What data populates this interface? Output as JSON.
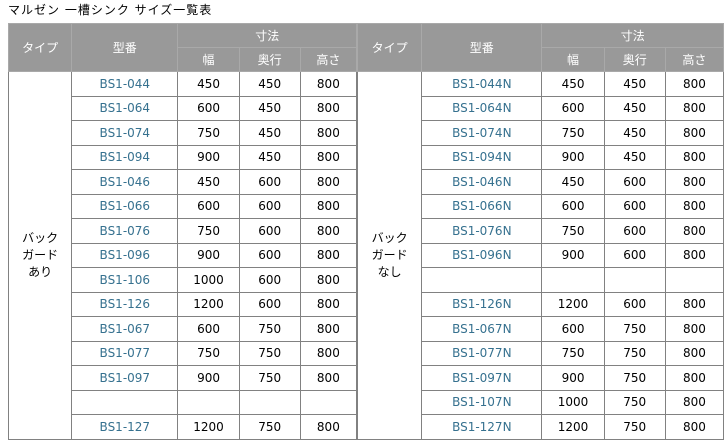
{
  "title": "マルゼン 一槽シンク サイズ一覧表",
  "colors": {
    "header_bg": "#999999",
    "header_text": "#ffffff",
    "model_link_text": "#36718f",
    "grid_border": "#818181"
  },
  "header": {
    "type": "タイプ",
    "model": "型番",
    "dimensions": "寸法",
    "width": "幅",
    "depth": "奥行",
    "height": "高さ"
  },
  "tables": [
    {
      "id": "backguard-ari",
      "type_label": [
        "バック",
        "ガード",
        "あり"
      ],
      "rows": [
        {
          "model": "BS1-044",
          "width": "450",
          "depth": "450",
          "height": "800"
        },
        {
          "model": "BS1-064",
          "width": "600",
          "depth": "450",
          "height": "800"
        },
        {
          "model": "BS1-074",
          "width": "750",
          "depth": "450",
          "height": "800"
        },
        {
          "model": "BS1-094",
          "width": "900",
          "depth": "450",
          "height": "800"
        },
        {
          "model": "BS1-046",
          "width": "450",
          "depth": "600",
          "height": "800"
        },
        {
          "model": "BS1-066",
          "width": "600",
          "depth": "600",
          "height": "800"
        },
        {
          "model": "BS1-076",
          "width": "750",
          "depth": "600",
          "height": "800"
        },
        {
          "model": "BS1-096",
          "width": "900",
          "depth": "600",
          "height": "800"
        },
        {
          "model": "BS1-106",
          "width": "1000",
          "depth": "600",
          "height": "800"
        },
        {
          "model": "BS1-126",
          "width": "1200",
          "depth": "600",
          "height": "800"
        },
        {
          "model": "BS1-067",
          "width": "600",
          "depth": "750",
          "height": "800"
        },
        {
          "model": "BS1-077",
          "width": "750",
          "depth": "750",
          "height": "800"
        },
        {
          "model": "BS1-097",
          "width": "900",
          "depth": "750",
          "height": "800"
        },
        {
          "model": "",
          "width": "",
          "depth": "",
          "height": ""
        },
        {
          "model": "BS1-127",
          "width": "1200",
          "depth": "750",
          "height": "800"
        }
      ]
    },
    {
      "id": "backguard-nashi",
      "type_label": [
        "バック",
        "ガード",
        "なし"
      ],
      "rows": [
        {
          "model": "BS1-044N",
          "width": "450",
          "depth": "450",
          "height": "800"
        },
        {
          "model": "BS1-064N",
          "width": "600",
          "depth": "450",
          "height": "800"
        },
        {
          "model": "BS1-074N",
          "width": "750",
          "depth": "450",
          "height": "800"
        },
        {
          "model": "BS1-094N",
          "width": "900",
          "depth": "450",
          "height": "800"
        },
        {
          "model": "BS1-046N",
          "width": "450",
          "depth": "600",
          "height": "800"
        },
        {
          "model": "BS1-066N",
          "width": "600",
          "depth": "600",
          "height": "800"
        },
        {
          "model": "BS1-076N",
          "width": "750",
          "depth": "600",
          "height": "800"
        },
        {
          "model": "BS1-096N",
          "width": "900",
          "depth": "600",
          "height": "800"
        },
        {
          "model": "",
          "width": "",
          "depth": "",
          "height": ""
        },
        {
          "model": "BS1-126N",
          "width": "1200",
          "depth": "600",
          "height": "800"
        },
        {
          "model": "BS1-067N",
          "width": "600",
          "depth": "750",
          "height": "800"
        },
        {
          "model": "BS1-077N",
          "width": "750",
          "depth": "750",
          "height": "800"
        },
        {
          "model": "BS1-097N",
          "width": "900",
          "depth": "750",
          "height": "800"
        },
        {
          "model": "BS1-107N",
          "width": "1000",
          "depth": "750",
          "height": "800"
        },
        {
          "model": "BS1-127N",
          "width": "1200",
          "depth": "750",
          "height": "800"
        }
      ]
    }
  ]
}
